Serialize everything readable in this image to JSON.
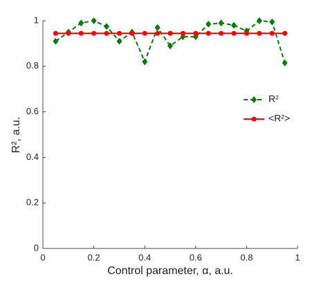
{
  "chart_data": {
    "type": "line",
    "x_label": "Control parameter, α,  a.u.",
    "y_label": "R², a.u.",
    "x": [
      0.05,
      0.1,
      0.15,
      0.2,
      0.25,
      0.3,
      0.35,
      0.4,
      0.45,
      0.5,
      0.55,
      0.6,
      0.65,
      0.7,
      0.75,
      0.8,
      0.85,
      0.9,
      0.95
    ],
    "series": [
      {
        "name": "R²",
        "color": "#007f00",
        "linestyle": "dashed",
        "marker": "diamond",
        "values": [
          0.91,
          0.95,
          0.99,
          1.0,
          0.975,
          0.91,
          0.95,
          0.82,
          0.97,
          0.89,
          0.93,
          0.93,
          0.985,
          0.99,
          0.98,
          0.955,
          1.0,
          0.995,
          0.815
        ]
      },
      {
        "name": "<R²>",
        "color": "#ff0000",
        "linestyle": "solid",
        "marker": "circle",
        "values": [
          0.945,
          0.945,
          0.945,
          0.945,
          0.945,
          0.945,
          0.945,
          0.945,
          0.945,
          0.945,
          0.945,
          0.945,
          0.945,
          0.945,
          0.945,
          0.945,
          0.945,
          0.945,
          0.945
        ]
      }
    ],
    "xlim": [
      0,
      1
    ],
    "xticks": [
      0,
      0.2,
      0.4,
      0.6,
      0.8,
      1
    ],
    "ylim": [
      0,
      1
    ],
    "yticks": [
      0,
      0.2,
      0.4,
      0.6,
      0.8,
      1
    ],
    "legend": "upper right"
  }
}
